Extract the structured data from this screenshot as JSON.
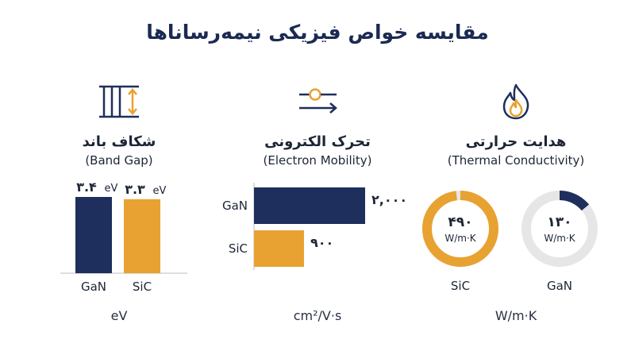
{
  "title": "مقایسه خواص فیزیکی نیمه‌رساناها",
  "colors": {
    "gan": "#1e2f5e",
    "sic": "#e8a231",
    "track": "#e6e6e6",
    "icon_navy": "#1e2f5e",
    "icon_orange": "#e8a231"
  },
  "panels": {
    "band_gap": {
      "title_fa": "شکاف باند",
      "title_en": "(Band Gap)",
      "unit": "eV",
      "icon": "band-gap-icon"
    },
    "mobility": {
      "title_fa": "تحرک الکترونی",
      "title_en": "(Electron Mobility)",
      "unit": "cm²/V·s",
      "icon": "mobility-slider-arrow-icon"
    },
    "thermal": {
      "title_fa": "هدایت حرارتی",
      "title_en": "(Thermal Conductivity)",
      "unit": "W/m·K",
      "icon": "flame-icon"
    }
  },
  "chart_data": [
    {
      "type": "bar",
      "orientation": "vertical",
      "categories": [
        "GaN",
        "SiC"
      ],
      "values": [
        3.4,
        3.3
      ],
      "value_labels": [
        "۳.۴",
        "۳.۳"
      ],
      "value_unit_label": "eV",
      "ylim": [
        0,
        3.4
      ],
      "colors": [
        "#1e2f5e",
        "#e8a231"
      ]
    },
    {
      "type": "bar",
      "orientation": "horizontal",
      "categories": [
        "GaN",
        "SiC"
      ],
      "values": [
        2000,
        900
      ],
      "value_labels": [
        "۲,۰۰۰",
        "۹۰۰"
      ],
      "xlim": [
        0,
        2000
      ],
      "colors": [
        "#1e2f5e",
        "#e8a231"
      ]
    },
    {
      "type": "pie",
      "style": "donut",
      "items": [
        {
          "label": "SiC",
          "value": 490,
          "value_label": "۴۹۰",
          "unit_label": "W/m·K",
          "fill_fraction": 0.98,
          "color": "#e8a231"
        },
        {
          "label": "GaN",
          "value": 130,
          "value_label": "۱۳۰",
          "unit_label": "W/m·K",
          "fill_fraction": 0.14,
          "color": "#1e2f5e"
        }
      ]
    }
  ]
}
